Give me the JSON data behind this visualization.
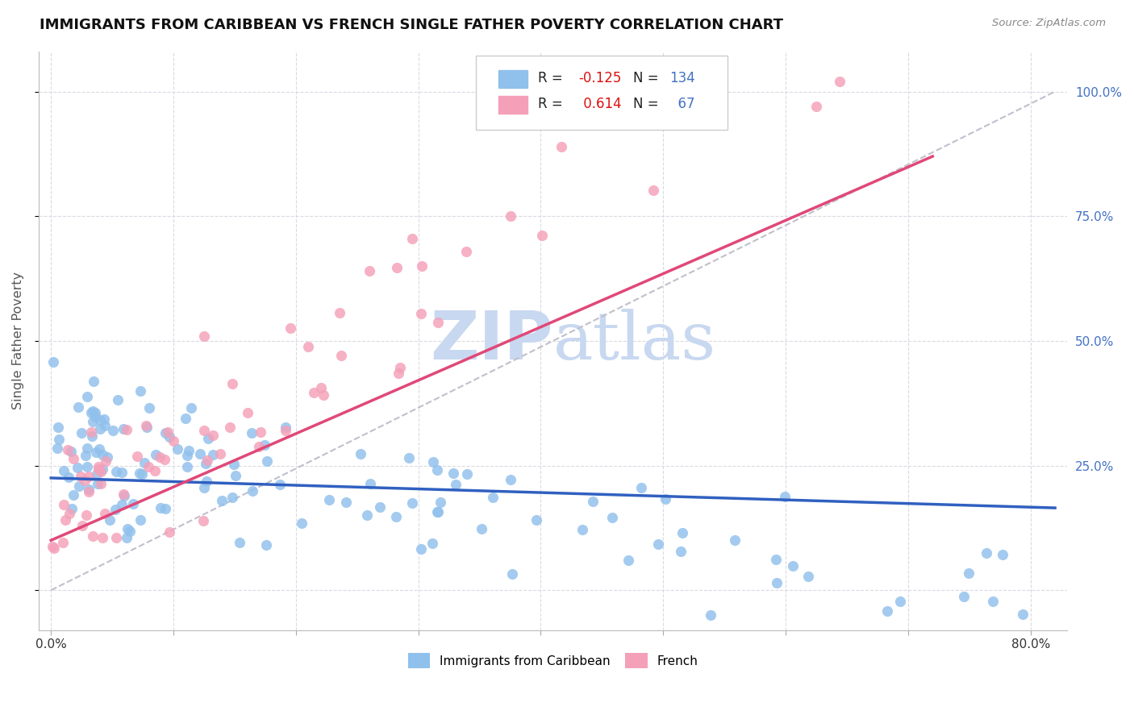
{
  "title": "IMMIGRANTS FROM CARIBBEAN VS FRENCH SINGLE FATHER POVERTY CORRELATION CHART",
  "source": "Source: ZipAtlas.com",
  "ylabel": "Single Father Poverty",
  "xlim": [
    -0.01,
    0.83
  ],
  "ylim": [
    -0.08,
    1.08
  ],
  "caribbean_R": -0.125,
  "caribbean_N": 134,
  "french_R": 0.614,
  "french_N": 67,
  "caribbean_color": "#90C0EC",
  "french_color": "#F4A0B8",
  "caribbean_line_color": "#3060C0",
  "french_line_color": "#E04878",
  "trendline_dashed_color": "#C0C0CC",
  "watermark_color": "#C8D8F0",
  "background_color": "#FFFFFF",
  "legend_blue": "#90C0EC",
  "legend_pink": "#F4A0B8",
  "right_tick_color": "#4472C4",
  "title_color": "#111111",
  "source_color": "#888888"
}
